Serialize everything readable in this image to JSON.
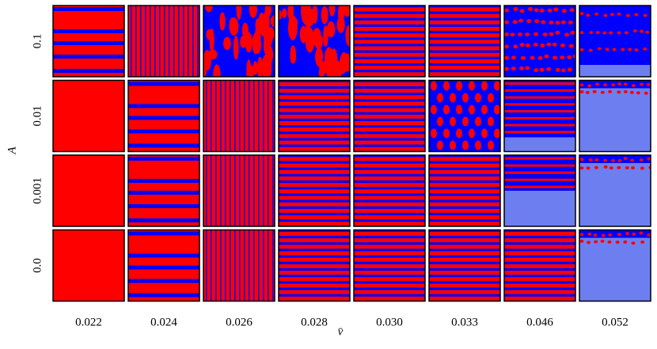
{
  "figure": {
    "x_label": "v̄",
    "y_label": "A",
    "columns": [
      "0.022",
      "0.024",
      "0.026",
      "0.028",
      "0.030",
      "0.033",
      "0.046",
      "0.052"
    ],
    "rows": [
      "0.1",
      "0.01",
      "0.001",
      "0.0"
    ]
  }
}
